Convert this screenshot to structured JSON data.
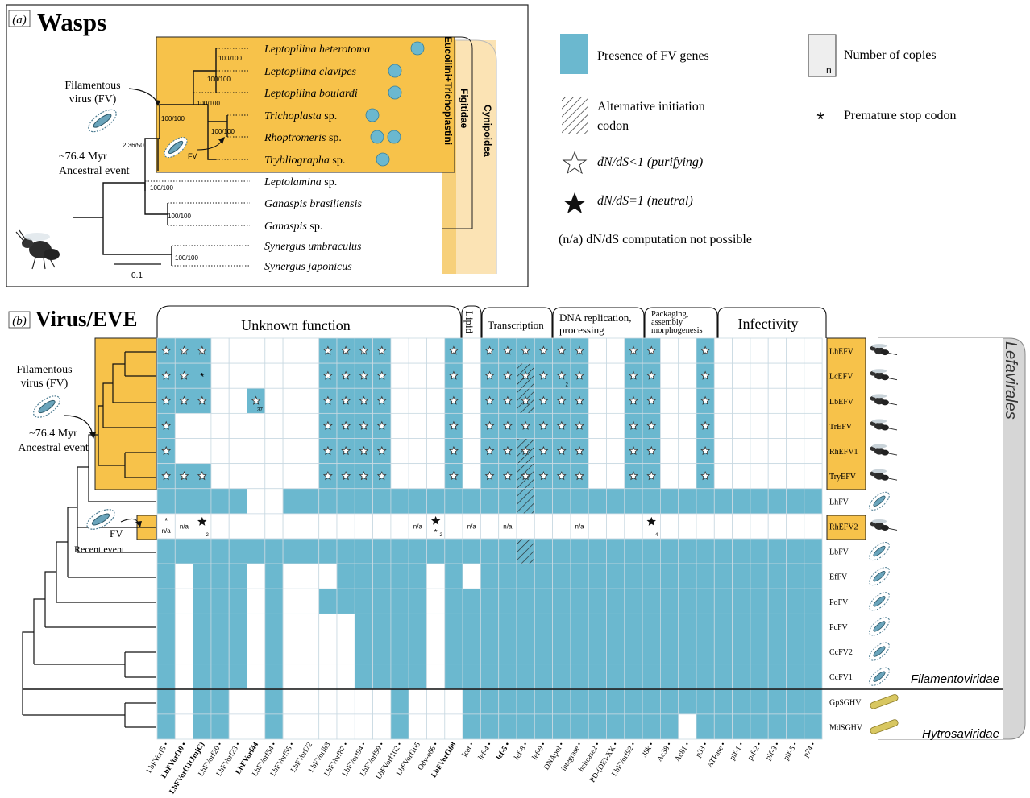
{
  "panel_a": {
    "label": "(a)",
    "title": "Wasps",
    "taxa": [
      "Leptopilina heterotoma",
      "Leptopilina clavipes",
      "Leptopilina boulardi",
      "Trichoplasta",
      "Rhoptromeris",
      "Trybliographa",
      "Leptolamina",
      "Ganaspis brasiliensis",
      "Ganaspis",
      "Synergus umbraculus",
      "Synergus japonicus"
    ],
    "taxa_suffix": [
      "",
      "",
      "",
      " sp.",
      " sp.",
      " sp.",
      " sp.",
      "",
      " sp.",
      "",
      ""
    ],
    "fv_dots": [
      1,
      1,
      1,
      1,
      2,
      1,
      0,
      0,
      0,
      0,
      0
    ],
    "support": [
      "100/100",
      "100/100",
      "100/100",
      "100/100",
      "100/100",
      "2.36/50",
      "100/100",
      "100/100",
      "100/100"
    ],
    "fv_label": "Filamentous virus (FV)",
    "fv_label_lines": [
      "Filamentous",
      "virus (FV)"
    ],
    "fv_short": "FV",
    "ancestral_event": [
      "~76.4 Myr",
      "Ancestral event"
    ],
    "scale_bar": "0.1",
    "clades": [
      "Eucoilini+Trichoplastini",
      "Figitidae",
      "Cynipoidea"
    ]
  },
  "legend": {
    "presence": "Presence of FV genes",
    "copies": "Number of copies",
    "copies_symbol": "n",
    "alt_init": [
      "Alternative initiation",
      "codon"
    ],
    "stop_symbol": "*",
    "stop": "Premature stop codon",
    "purifying": "dN/dS<1 (purifying)",
    "neutral": "dN/dS=1 (neutral)",
    "na": "(n/a)  dN/dS computation not possible"
  },
  "panel_b": {
    "label": "(b)",
    "title": "Virus/EVE",
    "categories": [
      "Unknown function",
      "Lipid",
      "Transcription",
      "DNA replication,",
      "processing",
      "Packaging,",
      "assembly",
      "morphogenesis",
      "Infectivity"
    ],
    "fv_label_lines": [
      "Filamentous",
      "virus (FV)"
    ],
    "ancestral_event": [
      "~76.4 Myr",
      "Ancestral event"
    ],
    "fv_short": "FV",
    "recent_event": "Recent event",
    "rows": [
      "LhEFV",
      "LcEFV",
      "LbEFV",
      "TrEFV",
      "RhEFV1",
      "TryEFV",
      "LhFV",
      "RhEFV2",
      "LbFV",
      "EfFV",
      "PoFV",
      "PcFV",
      "CcFV2",
      "CcFV1",
      "GpSGHV",
      "MdSGHV"
    ],
    "genes": [
      "LbFVorf5",
      "LbFVorf10",
      "LbFVorf11(JmjC)",
      "LbFVorf20",
      "LbFVorf23",
      "LbFVorf44",
      "LbFVorf54",
      "LbFVorf55",
      "LbFVorf72",
      "LbFVorf83",
      "LbFVorf87",
      "LbFVorf94",
      "LbFVorf99",
      "LbFVorf102",
      "LbFVorf105",
      "Odv-e66",
      "LbFVorf108",
      "lcat",
      "lef-4",
      "lef-5",
      "lef-8",
      "lef-9",
      "DNApol",
      "integrase",
      "helicase2",
      "PD-(DE)-XK",
      "LbFVorf92",
      "38k",
      "Ac38",
      "Ac81",
      "p33",
      "ATPase",
      "pif-1",
      "pif-2",
      "pif-3",
      "pif-5",
      "p74"
    ],
    "gene_marks": [
      "•",
      "•",
      "",
      "•",
      "•",
      "",
      "•",
      "•",
      "",
      "",
      "•",
      "•",
      "•",
      "•",
      "",
      "•",
      "",
      "•",
      "•",
      "•",
      "•",
      "•",
      "•",
      "•",
      "•",
      "•",
      "•",
      "•",
      "•",
      "•",
      "•",
      "•",
      "•",
      "•",
      "•",
      "•",
      "•"
    ],
    "bold_genes": [
      1,
      2,
      5,
      16,
      19
    ],
    "group_labels": [
      "Lefavirales",
      "Filamentoviridae",
      "Hytrosaviridae"
    ],
    "na_text": "n/a",
    "copy_labels": [
      "2",
      "37",
      "2",
      "2",
      "4"
    ]
  },
  "colors": {
    "presence": "#6bb8cf",
    "highlight": "#f7c24a",
    "cynipoidea": "#fbe3b4",
    "grid": "#c9d9e2",
    "gray_band": "#d6d6d6"
  }
}
